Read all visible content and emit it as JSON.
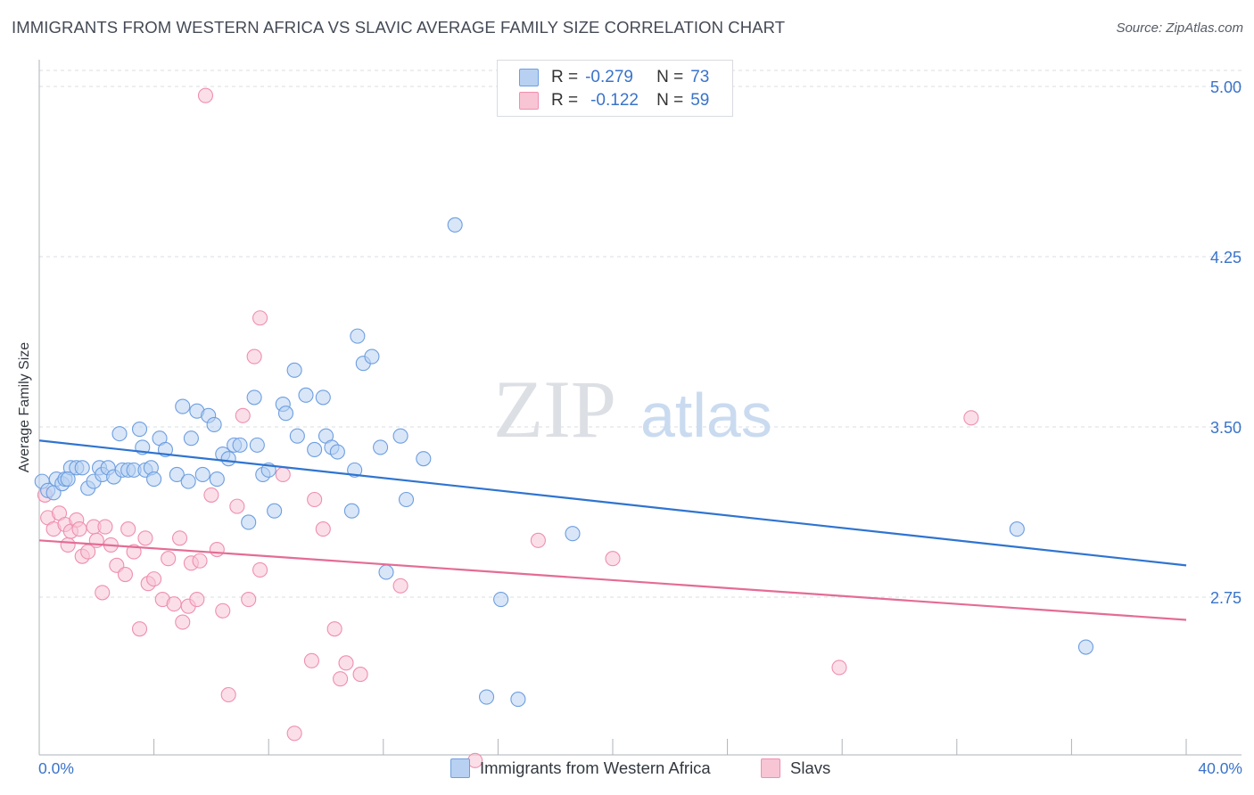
{
  "title": "IMMIGRANTS FROM WESTERN AFRICA VS SLAVIC AVERAGE FAMILY SIZE CORRELATION CHART",
  "source": "Source: ZipAtlas.com",
  "watermark": {
    "zip": "ZIP",
    "atlas": "atlas"
  },
  "colors": {
    "blue_fill": "#b8d1f2",
    "blue_stroke": "#6d9ee0",
    "blue_line": "#2f74d0",
    "pink_fill": "#f8c5d5",
    "pink_stroke": "#ef8fae",
    "pink_line": "#e46c96",
    "tick_label": "#3a73c9",
    "grid": "#d9dde3"
  },
  "legend": {
    "rows": [
      {
        "r_label": "R =",
        "r_value": "-0.279",
        "n_label": "N =",
        "n_value": "73"
      },
      {
        "r_label": "R =",
        "r_value": "-0.122",
        "n_label": "N =",
        "n_value": "59"
      }
    ]
  },
  "x_axis": {
    "min_label": "0.0%",
    "max_label": "40.0%"
  },
  "chart_data": {
    "type": "scatter",
    "title": "IMMIGRANTS FROM WESTERN AFRICA VS SLAVIC AVERAGE FAMILY SIZE CORRELATION CHART",
    "xlabel": "",
    "ylabel": "Average Family Size",
    "xlim": [
      0,
      40
    ],
    "ylim": [
      2.0,
      5.1
    ],
    "y_ticks": [
      2.75,
      3.5,
      4.25,
      5.0
    ],
    "y_tick_labels": [
      "2.75",
      "3.50",
      "4.25",
      "5.00"
    ],
    "grid": "horizontal dashed",
    "legend_position": "top-center",
    "series": [
      {
        "name": "Immigrants from Western Africa",
        "r": -0.279,
        "n": 73,
        "trend": {
          "x": [
            0,
            40
          ],
          "y": [
            3.44,
            2.89
          ]
        },
        "points": [
          [
            0.1,
            3.26
          ],
          [
            0.3,
            3.22
          ],
          [
            0.5,
            3.21
          ],
          [
            0.6,
            3.27
          ],
          [
            0.8,
            3.25
          ],
          [
            0.9,
            3.27
          ],
          [
            1.1,
            3.32
          ],
          [
            1.3,
            3.32
          ],
          [
            1.5,
            3.32
          ],
          [
            1.7,
            3.23
          ],
          [
            1.9,
            3.26
          ],
          [
            2.1,
            3.32
          ],
          [
            2.2,
            3.29
          ],
          [
            2.4,
            3.32
          ],
          [
            2.6,
            3.28
          ],
          [
            2.8,
            3.47
          ],
          [
            2.9,
            3.31
          ],
          [
            3.1,
            3.31
          ],
          [
            3.3,
            3.31
          ],
          [
            3.5,
            3.49
          ],
          [
            3.6,
            3.41
          ],
          [
            3.7,
            3.31
          ],
          [
            3.9,
            3.32
          ],
          [
            4.0,
            3.27
          ],
          [
            4.2,
            3.45
          ],
          [
            4.4,
            3.4
          ],
          [
            4.8,
            3.29
          ],
          [
            5.0,
            3.59
          ],
          [
            5.2,
            3.26
          ],
          [
            5.3,
            3.45
          ],
          [
            5.5,
            3.57
          ],
          [
            5.7,
            3.29
          ],
          [
            5.9,
            3.55
          ],
          [
            6.1,
            3.51
          ],
          [
            6.2,
            3.27
          ],
          [
            6.4,
            3.38
          ],
          [
            6.6,
            3.36
          ],
          [
            6.8,
            3.42
          ],
          [
            7.0,
            3.42
          ],
          [
            7.3,
            3.08
          ],
          [
            7.5,
            3.63
          ],
          [
            7.6,
            3.42
          ],
          [
            7.8,
            3.29
          ],
          [
            8.0,
            3.31
          ],
          [
            8.2,
            3.13
          ],
          [
            8.5,
            3.6
          ],
          [
            8.6,
            3.56
          ],
          [
            8.9,
            3.75
          ],
          [
            9.0,
            3.46
          ],
          [
            9.3,
            3.64
          ],
          [
            9.6,
            3.4
          ],
          [
            9.9,
            3.63
          ],
          [
            10.0,
            3.46
          ],
          [
            10.2,
            3.41
          ],
          [
            10.4,
            3.39
          ],
          [
            10.9,
            3.13
          ],
          [
            11.0,
            3.31
          ],
          [
            11.1,
            3.9
          ],
          [
            11.3,
            3.78
          ],
          [
            11.6,
            3.81
          ],
          [
            11.9,
            3.41
          ],
          [
            12.1,
            2.86
          ],
          [
            12.6,
            3.46
          ],
          [
            12.8,
            3.18
          ],
          [
            13.4,
            3.36
          ],
          [
            14.5,
            4.39
          ],
          [
            16.1,
            2.74
          ],
          [
            15.6,
            2.31
          ],
          [
            16.7,
            2.3
          ],
          [
            18.6,
            3.03
          ],
          [
            34.1,
            3.05
          ],
          [
            36.5,
            2.53
          ],
          [
            1.0,
            3.27
          ]
        ]
      },
      {
        "name": "Slavs",
        "r": -0.122,
        "n": 59,
        "trend": {
          "x": [
            0,
            40
          ],
          "y": [
            3.0,
            2.65
          ]
        },
        "points": [
          [
            0.2,
            3.2
          ],
          [
            0.3,
            3.1
          ],
          [
            0.5,
            3.05
          ],
          [
            0.7,
            3.12
          ],
          [
            0.9,
            3.07
          ],
          [
            1.0,
            2.98
          ],
          [
            1.1,
            3.04
          ],
          [
            1.3,
            3.09
          ],
          [
            1.4,
            3.05
          ],
          [
            1.5,
            2.93
          ],
          [
            1.7,
            2.95
          ],
          [
            1.9,
            3.06
          ],
          [
            2.0,
            3.0
          ],
          [
            2.2,
            2.77
          ],
          [
            2.3,
            3.06
          ],
          [
            2.5,
            2.98
          ],
          [
            2.7,
            2.89
          ],
          [
            3.0,
            2.85
          ],
          [
            3.1,
            3.05
          ],
          [
            3.3,
            2.95
          ],
          [
            3.5,
            2.61
          ],
          [
            3.7,
            3.01
          ],
          [
            3.8,
            2.81
          ],
          [
            4.0,
            2.83
          ],
          [
            4.3,
            2.74
          ],
          [
            4.5,
            2.92
          ],
          [
            4.7,
            2.72
          ],
          [
            4.9,
            3.01
          ],
          [
            5.0,
            2.64
          ],
          [
            5.2,
            2.71
          ],
          [
            5.3,
            2.9
          ],
          [
            5.5,
            2.74
          ],
          [
            5.6,
            2.91
          ],
          [
            5.8,
            4.96
          ],
          [
            6.0,
            3.2
          ],
          [
            6.2,
            2.96
          ],
          [
            6.4,
            2.69
          ],
          [
            6.6,
            2.32
          ],
          [
            6.9,
            3.15
          ],
          [
            7.1,
            3.55
          ],
          [
            7.3,
            2.74
          ],
          [
            7.5,
            3.81
          ],
          [
            7.7,
            2.87
          ],
          [
            7.7,
            3.98
          ],
          [
            8.5,
            3.29
          ],
          [
            8.9,
            2.15
          ],
          [
            9.5,
            2.47
          ],
          [
            9.6,
            3.18
          ],
          [
            9.9,
            3.05
          ],
          [
            10.3,
            2.61
          ],
          [
            10.5,
            2.39
          ],
          [
            10.7,
            2.46
          ],
          [
            11.2,
            2.41
          ],
          [
            12.6,
            2.8
          ],
          [
            17.4,
            3.0
          ],
          [
            20.0,
            2.92
          ],
          [
            27.9,
            2.44
          ],
          [
            32.5,
            3.54
          ],
          [
            15.2,
            2.03
          ]
        ]
      }
    ]
  },
  "bottom_legend": [
    {
      "label": "Immigrants from Western Africa"
    },
    {
      "label": "Slavs"
    }
  ]
}
